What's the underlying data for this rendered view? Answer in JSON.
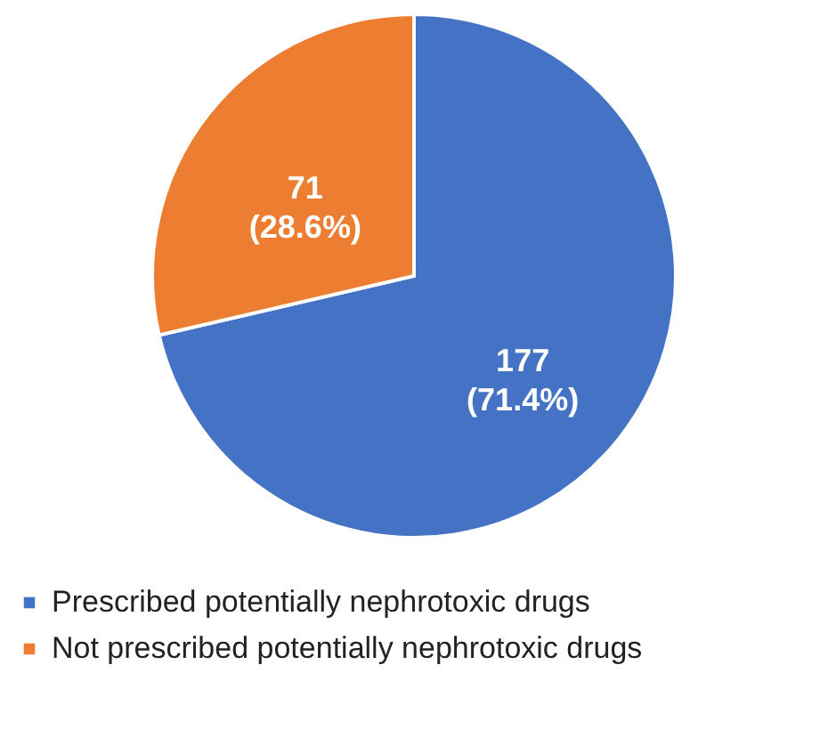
{
  "chart_data": {
    "type": "pie",
    "categories": [
      "Prescribed potentially nephrotoxic drugs",
      "Not prescribed potentially nephrotoxic drugs"
    ],
    "values": [
      177,
      71
    ],
    "colors": [
      "#4472c4",
      "#ed7d31"
    ],
    "value_labels": [
      "177\n(71.4%)",
      "71\n(28.6%)"
    ],
    "legend": "bottom"
  }
}
